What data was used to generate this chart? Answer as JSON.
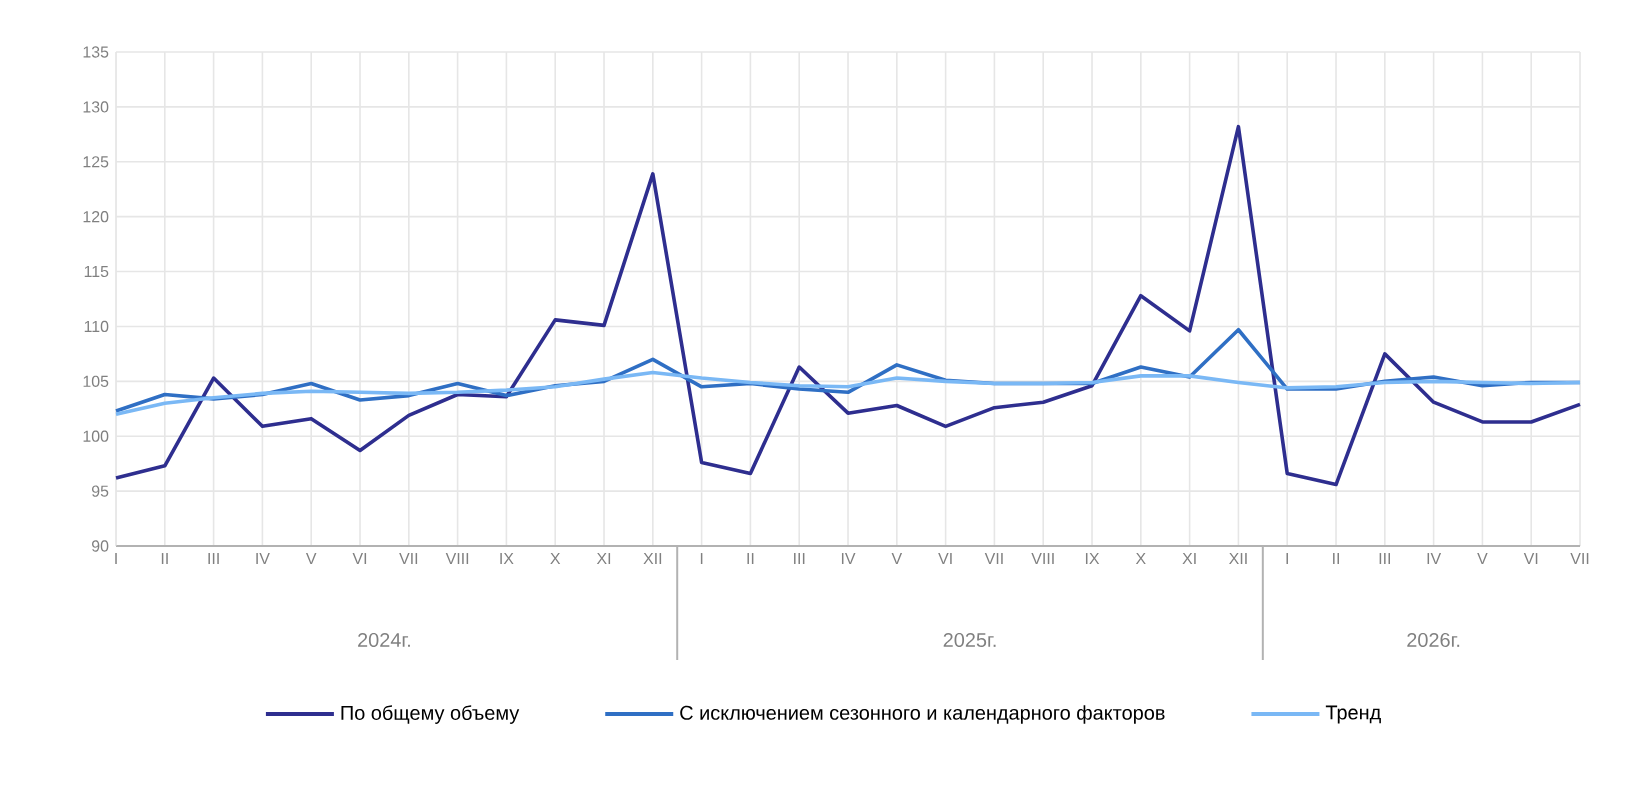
{
  "chart_data": {
    "type": "line",
    "categories": [
      "I",
      "II",
      "III",
      "IV",
      "V",
      "VI",
      "VII",
      "VIII",
      "IX",
      "X",
      "XI",
      "XII",
      "I",
      "II",
      "III",
      "IV",
      "V",
      "VI",
      "VII",
      "VIII",
      "IX",
      "X",
      "XI",
      "XII",
      "I",
      "II",
      "III",
      "IV",
      "V",
      "VI",
      "VII"
    ],
    "series": [
      {
        "name": "По общему объему",
        "color": "#2e2e8f",
        "values": [
          96.2,
          97.3,
          105.3,
          100.9,
          101.6,
          98.7,
          101.9,
          103.8,
          103.6,
          110.6,
          110.1,
          123.9,
          97.6,
          96.6,
          106.3,
          102.1,
          102.8,
          100.9,
          102.6,
          103.1,
          104.6,
          112.8,
          109.6,
          128.2,
          96.6,
          95.6,
          107.5,
          103.1,
          101.3,
          101.3,
          102.9
        ]
      },
      {
        "name": "С исключением сезонного и календарного факторов",
        "color": "#2f6fc4",
        "values": [
          102.3,
          103.8,
          103.4,
          103.8,
          104.8,
          103.3,
          103.7,
          104.8,
          103.7,
          104.6,
          105.0,
          107.0,
          104.5,
          104.8,
          104.3,
          104.0,
          106.5,
          105.1,
          104.8,
          104.8,
          104.8,
          106.3,
          105.4,
          109.7,
          104.3,
          104.3,
          105.0,
          105.4,
          104.6,
          104.9,
          104.9
        ]
      },
      {
        "name": "Тренд",
        "color": "#7ab8f5",
        "values": [
          102.0,
          103.0,
          103.5,
          103.9,
          104.1,
          104.0,
          103.9,
          104.0,
          104.2,
          104.5,
          105.2,
          105.8,
          105.3,
          104.9,
          104.6,
          104.5,
          105.3,
          105.0,
          104.8,
          104.8,
          104.9,
          105.5,
          105.5,
          104.9,
          104.4,
          104.5,
          104.9,
          105.0,
          104.9,
          104.8,
          104.9
        ]
      }
    ],
    "annotations": [
      "2024г.",
      "2025г.",
      "2026г."
    ],
    "ylim": [
      90,
      135
    ],
    "yticks": [
      90,
      95,
      100,
      105,
      110,
      115,
      120,
      125,
      130,
      135
    ],
    "grid": true,
    "legend": "bottom",
    "marker": "none",
    "line_style": "solid"
  }
}
